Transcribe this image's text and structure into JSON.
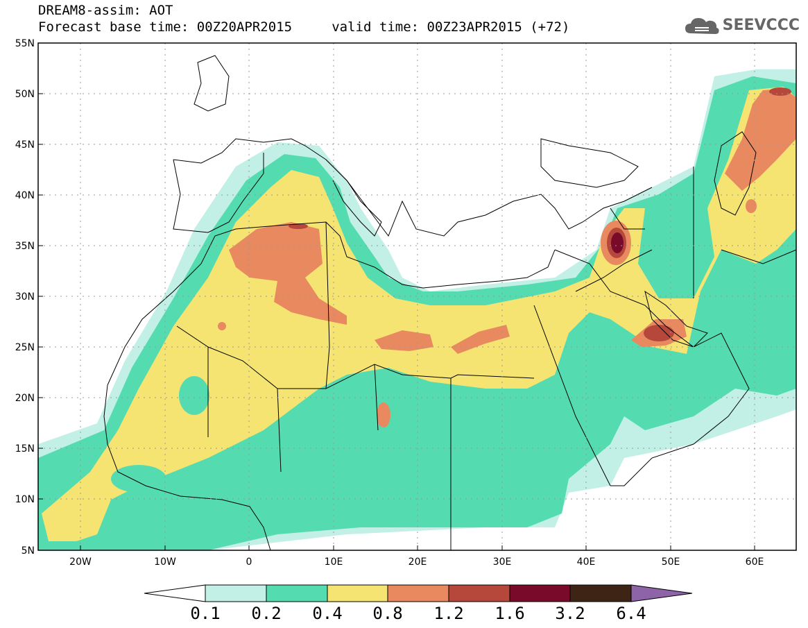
{
  "header": {
    "title_line1": "DREAM8-assim: AOT",
    "title_line2": "Forecast base time: 00Z20APR2015     valid time: 00Z23APR2015 (+72)",
    "logo_text": "SEEVCCC"
  },
  "map": {
    "lat_labels": [
      "55N",
      "50N",
      "45N",
      "40N",
      "35N",
      "30N",
      "25N",
      "20N",
      "15N",
      "10N",
      "5N"
    ],
    "lon_labels": [
      "20W",
      "10W",
      "0",
      "10E",
      "20E",
      "30E",
      "40E",
      "50E",
      "60E"
    ]
  },
  "colorbar": {
    "labels": [
      "0.1",
      "0.2",
      "0.4",
      "0.8",
      "1.2",
      "1.6",
      "3.2",
      "6.4"
    ],
    "colors": [
      "#ffffff",
      "#c2efe6",
      "#54dcb0",
      "#f5e472",
      "#e8895f",
      "#b5483a",
      "#7a0a2a",
      "#3d2414",
      "#8e64a8"
    ]
  },
  "colors": {
    "level_0.1": "#c2efe6",
    "level_0.2": "#54dcb0",
    "level_0.4": "#f5e472",
    "level_0.8": "#e8895f",
    "level_1.2": "#b5483a",
    "level_1.6": "#7a0a2a",
    "level_3.2": "#3d2414"
  }
}
